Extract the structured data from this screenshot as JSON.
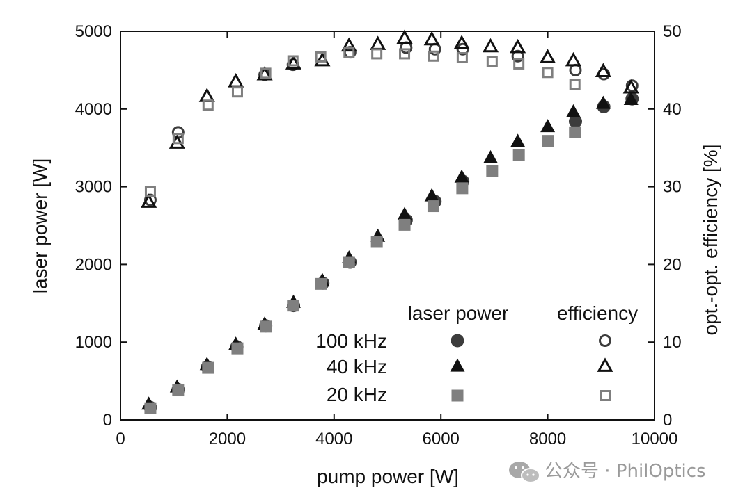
{
  "chart_data": {
    "type": "scatter",
    "xlabel": "pump power [W]",
    "ylabel_left": "laser power [W]",
    "ylabel_right": "opt.-opt. efficiency [%]",
    "xlim": [
      0,
      10000
    ],
    "ylim_left": [
      0,
      5000
    ],
    "ylim_right": [
      0,
      50
    ],
    "x_ticks": [
      0,
      2000,
      4000,
      6000,
      8000,
      10000
    ],
    "y_ticks_left": [
      0,
      1000,
      2000,
      3000,
      4000,
      5000
    ],
    "y_ticks_right": [
      0,
      10,
      20,
      30,
      40,
      50
    ],
    "legend": {
      "header_laser": "laser power",
      "header_efficiency": "efficiency",
      "placement": "bottom-right",
      "rows": [
        "100 kHz",
        "40 kHz",
        "20 kHz"
      ]
    },
    "colors": {
      "black": "#111111",
      "dark_gray": "#3c3c3c",
      "gray": "#7f7f7f"
    },
    "series": [
      {
        "name": "100 kHz",
        "quantity": "laser power",
        "axis": "left",
        "marker": "circle",
        "filled": true,
        "color": "#3c3c3c",
        "points": [
          [
            560,
            160
          ],
          [
            1080,
            390
          ],
          [
            1630,
            680
          ],
          [
            2180,
            940
          ],
          [
            2720,
            1210
          ],
          [
            3240,
            1470
          ],
          [
            3790,
            1760
          ],
          [
            4300,
            2030
          ],
          [
            5350,
            2570
          ],
          [
            5890,
            2810
          ],
          [
            6410,
            3070
          ],
          [
            8520,
            3840
          ],
          [
            9050,
            4030
          ],
          [
            9580,
            4130
          ]
        ]
      },
      {
        "name": "40 kHz",
        "quantity": "laser power",
        "axis": "left",
        "marker": "triangle",
        "filled": true,
        "color": "#111111",
        "points": [
          [
            530,
            200
          ],
          [
            1060,
            420
          ],
          [
            1620,
            710
          ],
          [
            2160,
            970
          ],
          [
            2700,
            1230
          ],
          [
            3240,
            1510
          ],
          [
            3780,
            1790
          ],
          [
            4280,
            2080
          ],
          [
            4820,
            2360
          ],
          [
            5320,
            2640
          ],
          [
            5830,
            2880
          ],
          [
            6390,
            3120
          ],
          [
            6930,
            3370
          ],
          [
            7440,
            3580
          ],
          [
            8000,
            3770
          ],
          [
            8480,
            3960
          ],
          [
            9040,
            4070
          ],
          [
            9560,
            4120
          ]
        ]
      },
      {
        "name": "20 kHz",
        "quantity": "laser power",
        "axis": "left",
        "marker": "square",
        "filled": true,
        "color": "#7f7f7f",
        "points": [
          [
            560,
            150
          ],
          [
            1080,
            380
          ],
          [
            1640,
            670
          ],
          [
            2190,
            920
          ],
          [
            2720,
            1200
          ],
          [
            3230,
            1470
          ],
          [
            3750,
            1750
          ],
          [
            4280,
            2030
          ],
          [
            4800,
            2290
          ],
          [
            5320,
            2510
          ],
          [
            5860,
            2750
          ],
          [
            6400,
            2980
          ],
          [
            6960,
            3200
          ],
          [
            7460,
            3410
          ],
          [
            8000,
            3590
          ],
          [
            8510,
            3700
          ]
        ]
      },
      {
        "name": "100 kHz",
        "quantity": "efficiency",
        "axis": "right",
        "marker": "circle",
        "filled": false,
        "color": "#3c3c3c",
        "points": [
          [
            560,
            28.3
          ],
          [
            1080,
            37.0
          ],
          [
            2700,
            44.4
          ],
          [
            3230,
            45.7
          ],
          [
            4300,
            47.3
          ],
          [
            5350,
            47.9
          ],
          [
            5890,
            47.7
          ],
          [
            6410,
            47.7
          ],
          [
            7440,
            46.8
          ],
          [
            8520,
            45.0
          ],
          [
            9050,
            44.5
          ],
          [
            9580,
            43.0
          ]
        ]
      },
      {
        "name": "40 kHz",
        "quantity": "efficiency",
        "axis": "right",
        "marker": "triangle",
        "filled": false,
        "color": "#111111",
        "points": [
          [
            530,
            28.0
          ],
          [
            1060,
            35.6
          ],
          [
            1620,
            41.6
          ],
          [
            2160,
            43.5
          ],
          [
            2700,
            44.4
          ],
          [
            3240,
            45.8
          ],
          [
            3780,
            46.2
          ],
          [
            4280,
            48.1
          ],
          [
            4820,
            48.3
          ],
          [
            5320,
            49.1
          ],
          [
            5830,
            48.9
          ],
          [
            6390,
            48.4
          ],
          [
            6930,
            48.0
          ],
          [
            7440,
            47.9
          ],
          [
            8000,
            46.6
          ],
          [
            8480,
            46.2
          ],
          [
            9040,
            44.8
          ],
          [
            9560,
            42.7
          ]
        ]
      },
      {
        "name": "20 kHz",
        "quantity": "efficiency",
        "axis": "right",
        "marker": "square",
        "filled": false,
        "color": "#7f7f7f",
        "points": [
          [
            560,
            29.4
          ],
          [
            1080,
            36.2
          ],
          [
            1640,
            40.5
          ],
          [
            2190,
            42.2
          ],
          [
            2720,
            44.6
          ],
          [
            3230,
            46.2
          ],
          [
            3750,
            46.7
          ],
          [
            4280,
            47.3
          ],
          [
            4800,
            47.1
          ],
          [
            5320,
            47.1
          ],
          [
            5860,
            46.8
          ],
          [
            6400,
            46.6
          ],
          [
            6960,
            46.1
          ],
          [
            7460,
            45.8
          ],
          [
            8000,
            44.7
          ],
          [
            8510,
            43.2
          ]
        ]
      }
    ]
  },
  "watermark": {
    "text": "公众号 · PhilOptics",
    "icon": "wechat-icon"
  }
}
